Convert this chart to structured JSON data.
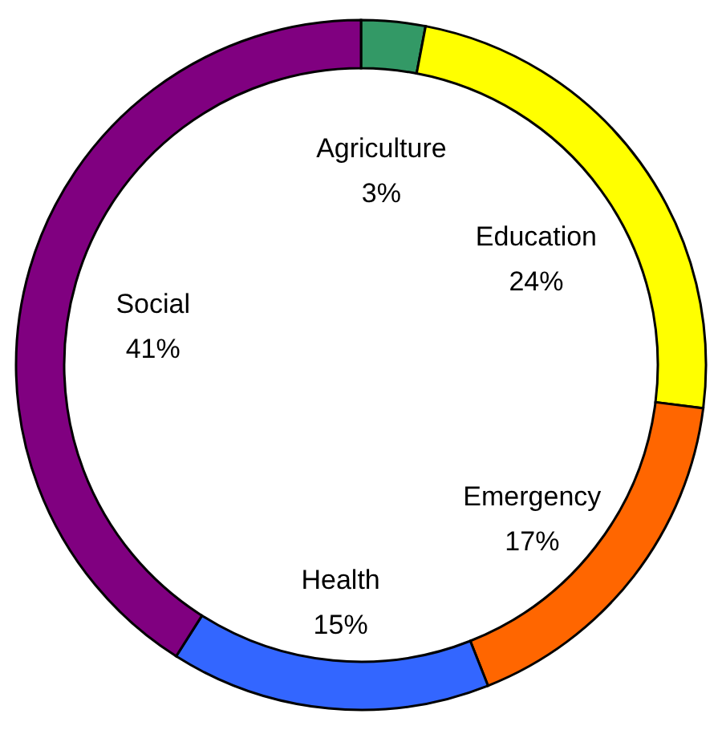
{
  "chart_data": {
    "type": "donut",
    "categories": [
      "Agriculture",
      "Education",
      "Emergency",
      "Health",
      "Social"
    ],
    "values": [
      3,
      24,
      17,
      15,
      41
    ],
    "colors": [
      "#339966",
      "#ffff00",
      "#ff6600",
      "#3366ff",
      "#800080"
    ],
    "value_labels": [
      "3%",
      "24%",
      "17%",
      "15%",
      "41%"
    ],
    "legend": false
  }
}
